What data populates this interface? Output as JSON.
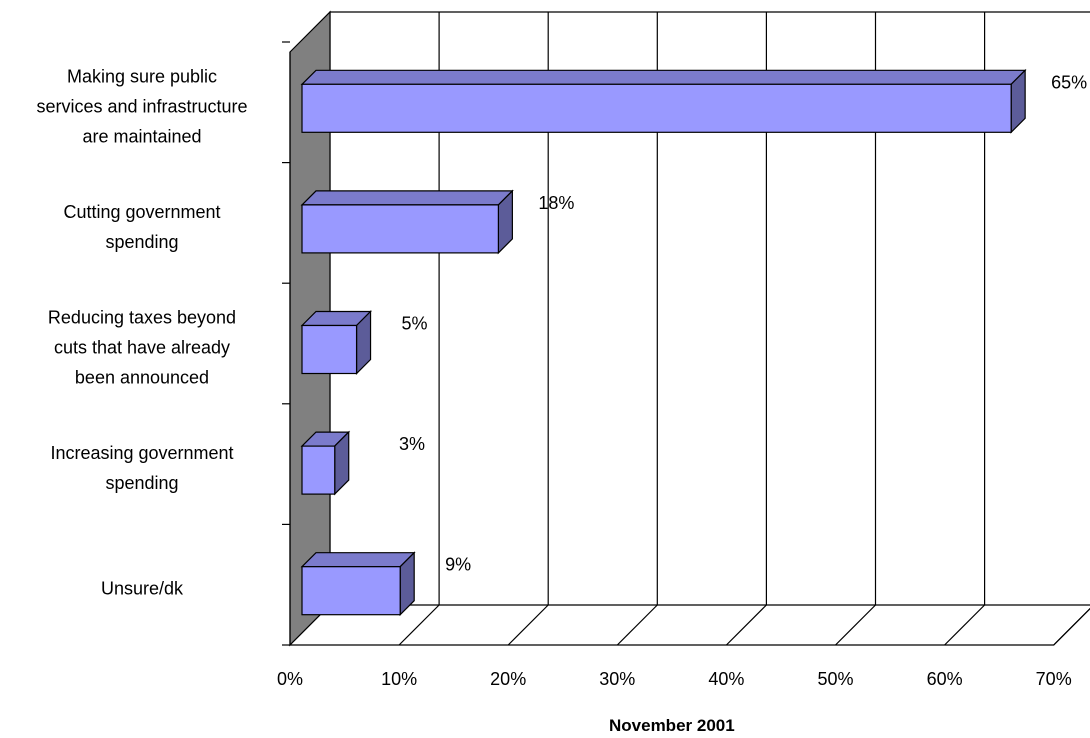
{
  "chart_data": {
    "type": "bar",
    "orientation": "horizontal",
    "three_d": true,
    "categories": [
      "Making sure public services and infrastructure are maintained",
      "Cutting government spending",
      "Reducing taxes beyond cuts that have already been announced",
      "Increasing government spending",
      "Unsure/dk"
    ],
    "category_lines": [
      [
        "Making sure public",
        "services and infrastructure",
        "are maintained"
      ],
      [
        "Cutting government",
        "spending"
      ],
      [
        "Reducing taxes beyond",
        "cuts that have already",
        "been announced"
      ],
      [
        "Increasing government",
        "spending"
      ],
      [
        "Unsure/dk"
      ]
    ],
    "series": [
      {
        "values": [
          65,
          18,
          5,
          3,
          9
        ],
        "data_labels": [
          "65%",
          "18%",
          "5%",
          "3%",
          "9%"
        ]
      }
    ],
    "xlabel": "November 2001",
    "xlim": [
      0,
      70
    ],
    "ticks": [
      "0%",
      "10%",
      "20%",
      "30%",
      "40%",
      "50%",
      "60%",
      "70%"
    ],
    "grid": true,
    "legend": "none",
    "colors": {
      "bar_front": "#9999FF",
      "bar_top": "#7B7BCC",
      "bar_side": "#5C5C99",
      "wall": "#808080",
      "gridline": "#000000"
    }
  }
}
